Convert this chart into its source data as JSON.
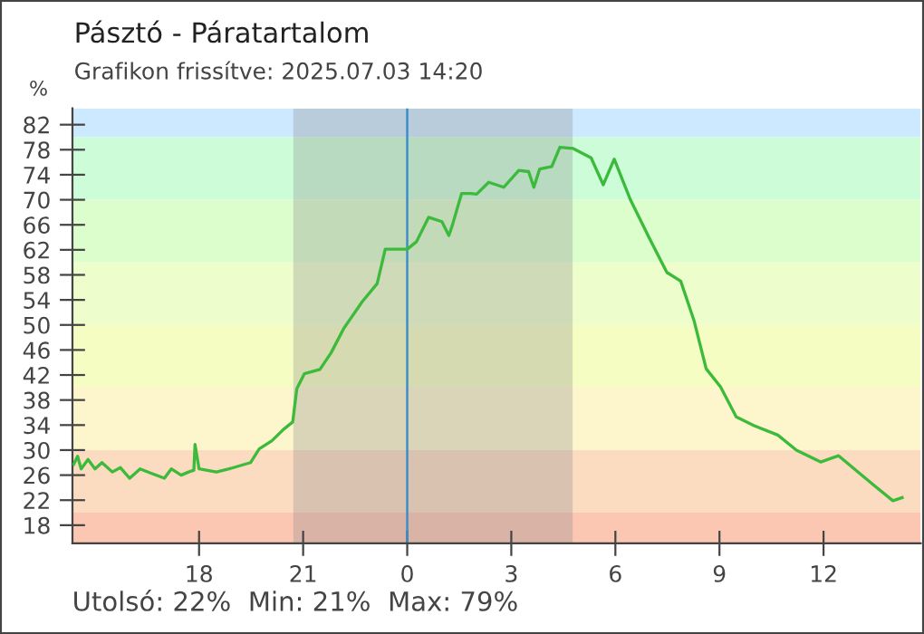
{
  "chart_data": {
    "type": "line",
    "title": "Pásztó - Páratartalom",
    "subtitle": "Grafikon frissítve: 2025.07.03 14:20",
    "ylabel": "%",
    "annotations": [
      "Utolsó: 22%  Min: 21%  Max: 79%"
    ],
    "xlim": [
      "2025-07-02T14:21",
      "2025-07-03T14:48"
    ],
    "ylim": [
      15.1,
      84.6
    ],
    "xticks": [
      {
        "value": "2025-07-02T18:00",
        "label": "18"
      },
      {
        "value": "2025-07-02T21:00",
        "label": "21"
      },
      {
        "value": "2025-07-03T00:00",
        "label": "0"
      },
      {
        "value": "2025-07-03T03:00",
        "label": "3"
      },
      {
        "value": "2025-07-03T06:00",
        "label": "6"
      },
      {
        "value": "2025-07-03T09:00",
        "label": "9"
      },
      {
        "value": "2025-07-03T12:00",
        "label": "12"
      }
    ],
    "yticks": [
      18,
      22,
      26,
      30,
      34,
      38,
      42,
      46,
      50,
      54,
      58,
      62,
      66,
      70,
      74,
      78,
      82
    ],
    "grid": false,
    "marker": "none",
    "line_style": "solid",
    "bands": [
      {
        "axis": "y",
        "from": 80,
        "to": 84.6,
        "color": "#cce9ff"
      },
      {
        "axis": "y",
        "from": 70,
        "to": 80,
        "color": "#ccfdd8"
      },
      {
        "axis": "y",
        "from": 60,
        "to": 70,
        "color": "#dcfdcc"
      },
      {
        "axis": "y",
        "from": 50,
        "to": 60,
        "color": "#edfdcc"
      },
      {
        "axis": "y",
        "from": 40,
        "to": 50,
        "color": "#f6fdc2"
      },
      {
        "axis": "y",
        "from": 30,
        "to": 40,
        "color": "#fdf5cc"
      },
      {
        "axis": "y",
        "from": 20,
        "to": 30,
        "color": "#fbdcc0"
      },
      {
        "axis": "y",
        "from": 15.1,
        "to": 20,
        "color": "#fbc6b2"
      },
      {
        "axis": "x",
        "from": "2025-07-02T20:43",
        "to": "2025-07-03T04:46",
        "color": "#8a8a8a"
      }
    ],
    "ref_lines": [
      {
        "axis": "x",
        "value": "2025-07-03T00:00",
        "color": "#3c8dc8"
      }
    ],
    "series": [
      {
        "color": "#3cba3c",
        "x": [
          "2025-07-02T14:23",
          "2025-07-02T14:30",
          "2025-07-02T14:36",
          "2025-07-02T14:48",
          "2025-07-02T15:00",
          "2025-07-02T15:12",
          "2025-07-02T15:30",
          "2025-07-02T15:44",
          "2025-07-02T16:00",
          "2025-07-02T16:18",
          "2025-07-02T16:37",
          "2025-07-02T17:00",
          "2025-07-02T17:12",
          "2025-07-02T17:29",
          "2025-07-02T17:42",
          "2025-07-02T17:51",
          "2025-07-02T17:53",
          "2025-07-02T18:00",
          "2025-07-02T18:30",
          "2025-07-02T18:52",
          "2025-07-02T19:29",
          "2025-07-02T19:44",
          "2025-07-02T20:06",
          "2025-07-02T20:26",
          "2025-07-02T20:42",
          "2025-07-02T20:49",
          "2025-07-02T21:02",
          "2025-07-02T21:29",
          "2025-07-02T21:48",
          "2025-07-02T22:10",
          "2025-07-02T22:42",
          "2025-07-02T23:08",
          "2025-07-02T23:22",
          "2025-07-03T00:00",
          "2025-07-03T00:16",
          "2025-07-03T00:37",
          "2025-07-03T01:00",
          "2025-07-03T01:12",
          "2025-07-03T01:18",
          "2025-07-03T01:34",
          "2025-07-03T01:50",
          "2025-07-03T02:00",
          "2025-07-03T02:21",
          "2025-07-03T02:47",
          "2025-07-03T03:13",
          "2025-07-03T03:30",
          "2025-07-03T03:39",
          "2025-07-03T03:49",
          "2025-07-03T04:10",
          "2025-07-03T04:24",
          "2025-07-03T04:47",
          "2025-07-03T05:18",
          "2025-07-03T05:39",
          "2025-07-03T05:58",
          "2025-07-03T06:26",
          "2025-07-03T06:57",
          "2025-07-03T07:29",
          "2025-07-03T07:53",
          "2025-07-03T08:16",
          "2025-07-03T08:37",
          "2025-07-03T09:02",
          "2025-07-03T09:29",
          "2025-07-03T10:00",
          "2025-07-03T10:41",
          "2025-07-03T11:13",
          "2025-07-03T11:55",
          "2025-07-03T12:26",
          "2025-07-03T12:57",
          "2025-07-03T13:28",
          "2025-07-03T14:00",
          "2025-07-03T14:16"
        ],
        "values": [
          27.7,
          29,
          27,
          28.5,
          27,
          28,
          26.5,
          27.2,
          25.5,
          27,
          26.3,
          25.5,
          27,
          26,
          26.5,
          26.8,
          30.9,
          27,
          26.5,
          27,
          28,
          30.2,
          31.5,
          33.3,
          34.5,
          39.8,
          42.2,
          42.9,
          45.5,
          49.4,
          53.7,
          56.6,
          62.1,
          62.1,
          63.3,
          67.2,
          66.5,
          64.3,
          65.9,
          71.0,
          71.0,
          70.9,
          72.8,
          72,
          74.7,
          74.5,
          72,
          74.9,
          75.3,
          78.4,
          78.2,
          76.7,
          72.4,
          76.5,
          70,
          64.2,
          58.4,
          57,
          50.7,
          43,
          40.1,
          35.3,
          33.9,
          32.4,
          30,
          28.1,
          29.1,
          26.7,
          24.3,
          21.9,
          22.4
        ]
      }
    ]
  }
}
